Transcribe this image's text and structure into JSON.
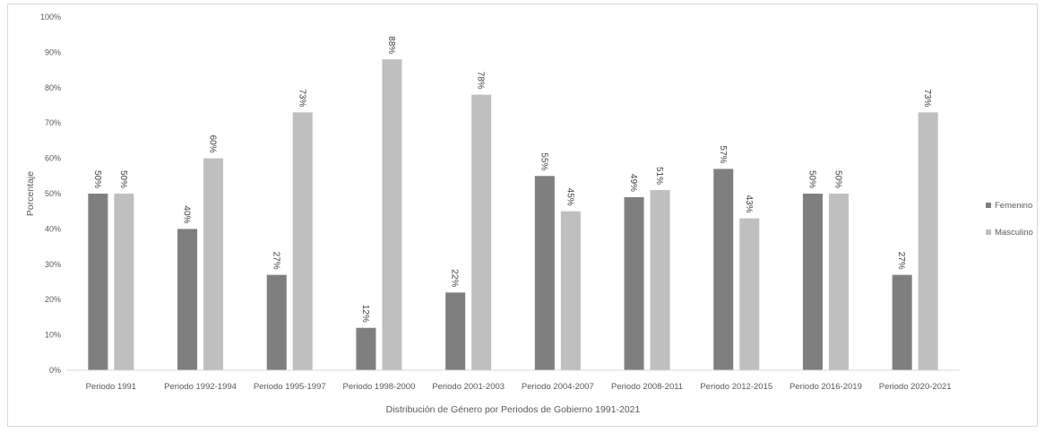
{
  "chart_data": {
    "type": "bar",
    "xlabel": "Distribución de Género por Periodos de Gobierno 1991-2021",
    "ylabel": "Porcentaje",
    "ylim": [
      0,
      100
    ],
    "yticks": [
      "0%",
      "10%",
      "20%",
      "30%",
      "40%",
      "50%",
      "60%",
      "70%",
      "80%",
      "90%",
      "100%"
    ],
    "grid": false,
    "legend_position": "right",
    "categories": [
      "Periodo 1991",
      "Periodo 1992-1994",
      "Periodo 1995-1997",
      "Periodo 1998-2000",
      "Periodo 2001-2003",
      "Periodo 2004-2007",
      "Periodo 2008-2011",
      "Periodo 2012-2015",
      "Periodo 2016-2019",
      "Periodo 2020-2021"
    ],
    "series": [
      {
        "name": "Femenino",
        "color": "#7f7f7f",
        "values": [
          50,
          40,
          27,
          12,
          22,
          55,
          49,
          57,
          50,
          27
        ],
        "labels": [
          "50%",
          "40%",
          "27%",
          "12%",
          "22%",
          "55%",
          "49%",
          "57%",
          "50%",
          "27%"
        ]
      },
      {
        "name": "Masculino",
        "color": "#bfbfbf",
        "values": [
          50,
          60,
          73,
          88,
          78,
          45,
          51,
          43,
          50,
          73
        ],
        "labels": [
          "50%",
          "60%",
          "73%",
          "88%",
          "78%",
          "45%",
          "51%",
          "43%",
          "50%",
          "73%"
        ]
      }
    ]
  }
}
